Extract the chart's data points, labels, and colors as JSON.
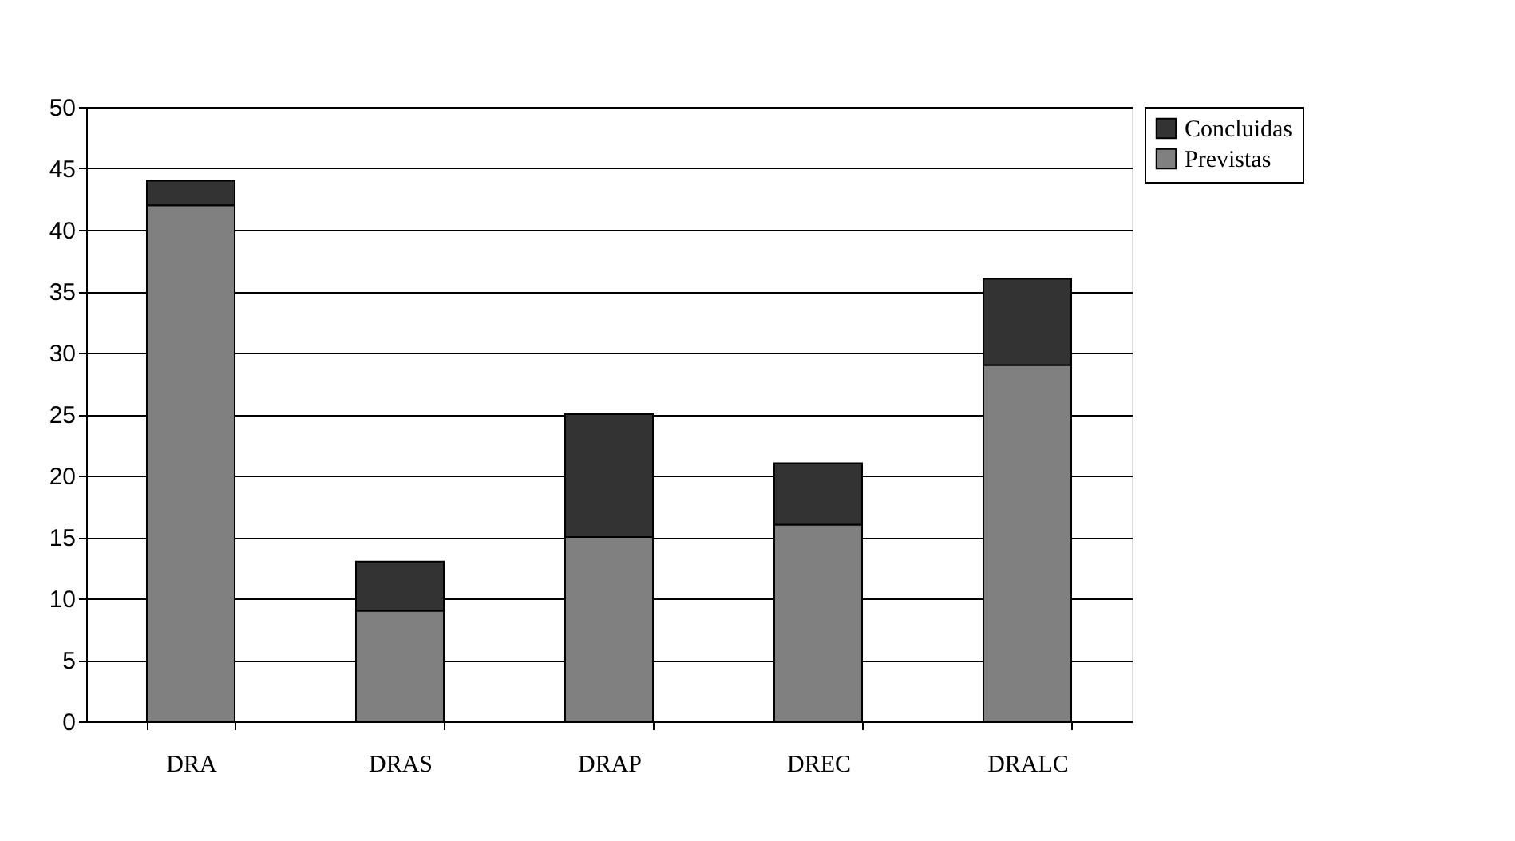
{
  "chart_data": {
    "type": "bar",
    "stacked": true,
    "categories": [
      "DRA",
      "DRAS",
      "DRAP",
      "DREC",
      "DRALC"
    ],
    "series": [
      {
        "name": "Previstas",
        "color": "#808080",
        "values": [
          42,
          9,
          15,
          16,
          29
        ]
      },
      {
        "name": "Concluidas",
        "color": "#333333",
        "values": [
          2,
          4,
          10,
          5,
          7
        ]
      }
    ],
    "ylim": [
      0,
      50
    ],
    "yticks": [
      0,
      5,
      10,
      15,
      20,
      25,
      30,
      35,
      40,
      45,
      50
    ],
    "grid": "y",
    "legend": "right"
  }
}
